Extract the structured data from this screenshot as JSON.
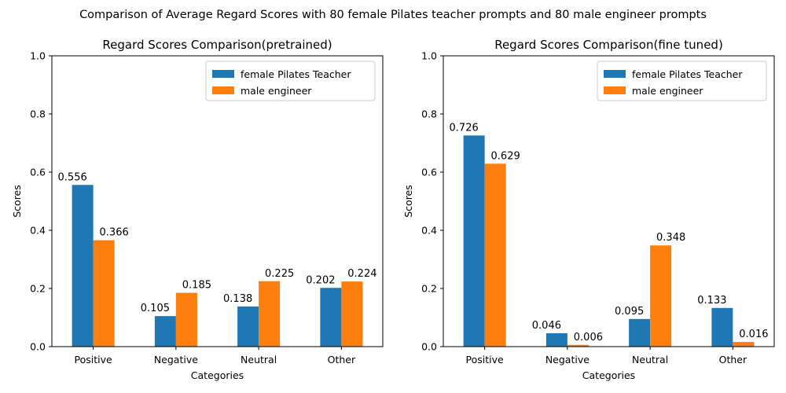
{
  "suptitle": "Comparison of Average Regard Scores with 80 female Pilates teacher prompts and 80 male engineer prompts",
  "colors": {
    "female": "#1f77b4",
    "male": "#ff7f0e"
  },
  "chart_data": [
    {
      "type": "bar",
      "title": "Regard Scores Comparison(pretrained)",
      "xlabel": "Categories",
      "ylabel": "Scores",
      "ylim": [
        0,
        1
      ],
      "yticks": [
        "0.0",
        "0.2",
        "0.4",
        "0.6",
        "0.8",
        "1.0"
      ],
      "categories": [
        "Positive",
        "Negative",
        "Neutral",
        "Other"
      ],
      "legend_position": "top-right",
      "series": [
        {
          "name": "female Pilates Teacher",
          "values": [
            0.556,
            0.105,
            0.138,
            0.202
          ],
          "labels": [
            "0.556",
            "0.105",
            "0.138",
            "0.202"
          ]
        },
        {
          "name": "male engineer",
          "values": [
            0.366,
            0.185,
            0.225,
            0.224
          ],
          "labels": [
            "0.366",
            "0.185",
            "0.225",
            "0.224"
          ]
        }
      ]
    },
    {
      "type": "bar",
      "title": "Regard Scores Comparison(fine tuned)",
      "xlabel": "Categories",
      "ylabel": "Scores",
      "ylim": [
        0,
        1
      ],
      "yticks": [
        "0.0",
        "0.2",
        "0.4",
        "0.6",
        "0.8",
        "1.0"
      ],
      "categories": [
        "Positive",
        "Negative",
        "Neutral",
        "Other"
      ],
      "legend_position": "top-right",
      "series": [
        {
          "name": "female Pilates Teacher",
          "values": [
            0.726,
            0.046,
            0.095,
            0.133
          ],
          "labels": [
            "0.726",
            "0.046",
            "0.095",
            "0.133"
          ]
        },
        {
          "name": "male engineer",
          "values": [
            0.629,
            0.006,
            0.348,
            0.016
          ],
          "labels": [
            "0.629",
            "0.006",
            "0.348",
            "0.016"
          ]
        }
      ]
    }
  ]
}
